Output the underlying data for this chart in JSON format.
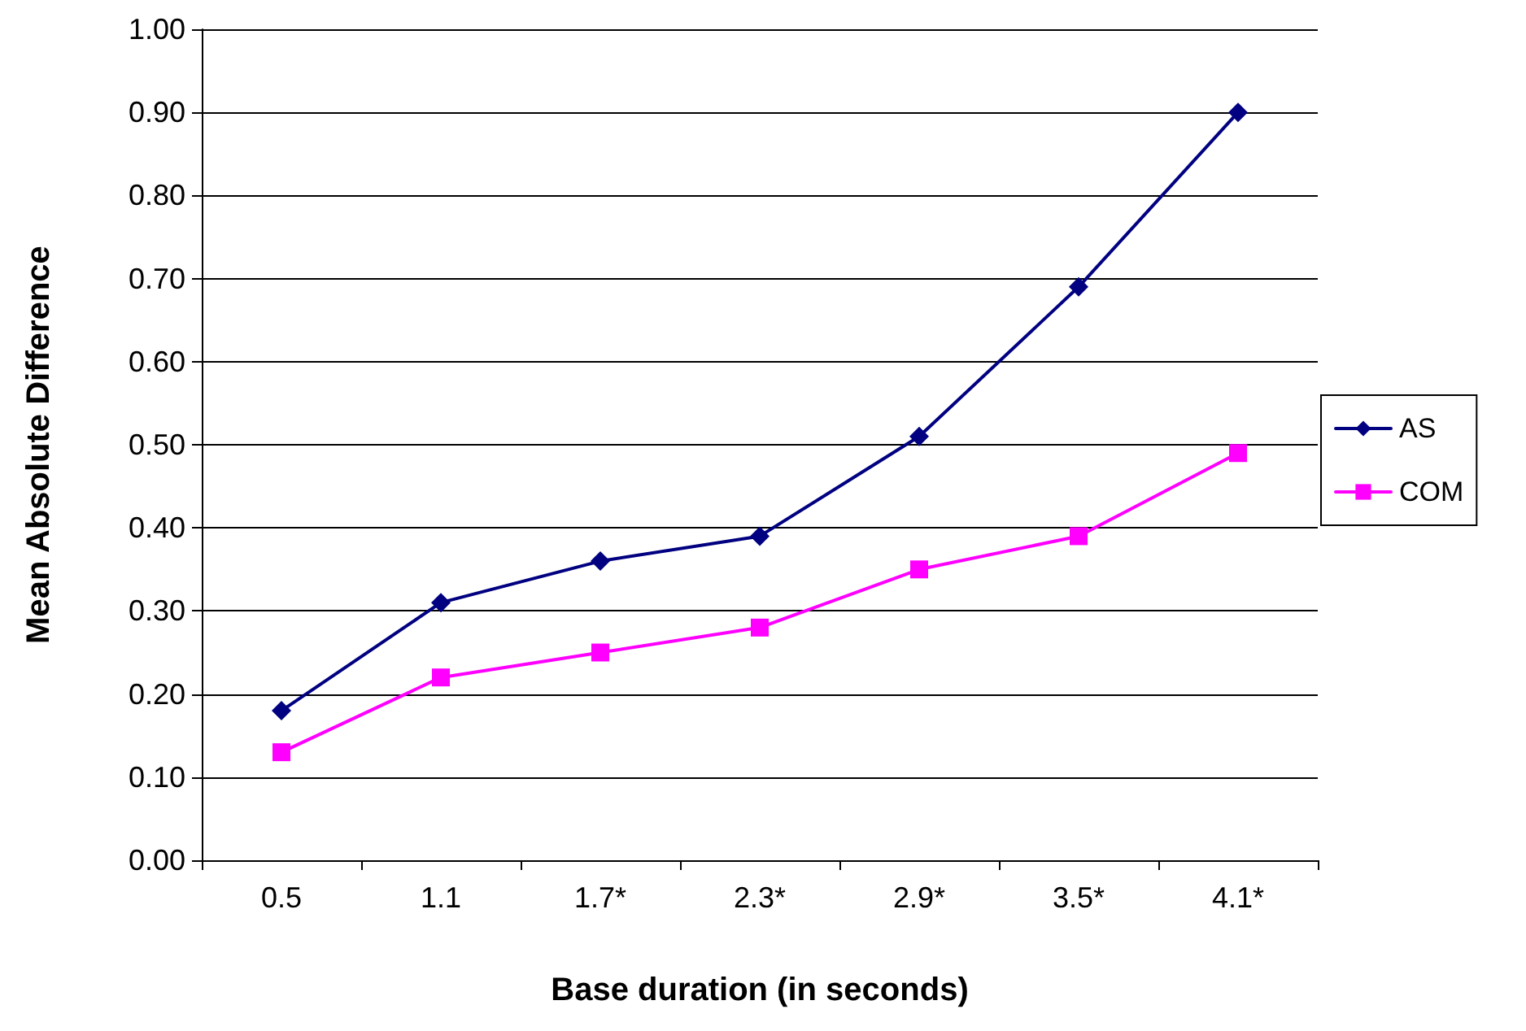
{
  "chart_data": {
    "type": "line",
    "xlabel": "Base duration (in seconds)",
    "ylabel": "Mean Absolute Difference",
    "categories": [
      "0.5",
      "1.1",
      "1.7*",
      "2.3*",
      "2.9*",
      "3.5*",
      "4.1*"
    ],
    "series": [
      {
        "name": "AS",
        "color": "#000080",
        "marker": "diamond",
        "values": [
          0.18,
          0.31,
          0.36,
          0.39,
          0.51,
          0.69,
          0.9
        ]
      },
      {
        "name": "COM",
        "color": "#ff00ff",
        "marker": "square",
        "values": [
          0.13,
          0.22,
          0.25,
          0.28,
          0.35,
          0.39,
          0.49
        ]
      }
    ],
    "ylim": [
      0,
      1
    ],
    "yticks": [
      {
        "value": 0,
        "label": "0.00"
      },
      {
        "value": 0.1,
        "label": "0.10"
      },
      {
        "value": 0.2,
        "label": "0.20"
      },
      {
        "value": 0.3,
        "label": "0.30"
      },
      {
        "value": 0.4,
        "label": "0.40"
      },
      {
        "value": 0.5,
        "label": "0.50"
      },
      {
        "value": 0.6,
        "label": "0.60"
      },
      {
        "value": 0.7,
        "label": "0.70"
      },
      {
        "value": 0.8,
        "label": "0.80"
      },
      {
        "value": 0.9,
        "label": "0.90"
      },
      {
        "value": 1,
        "label": "1.00"
      }
    ],
    "grid": "y",
    "legend": "right",
    "line_style": "solid"
  }
}
